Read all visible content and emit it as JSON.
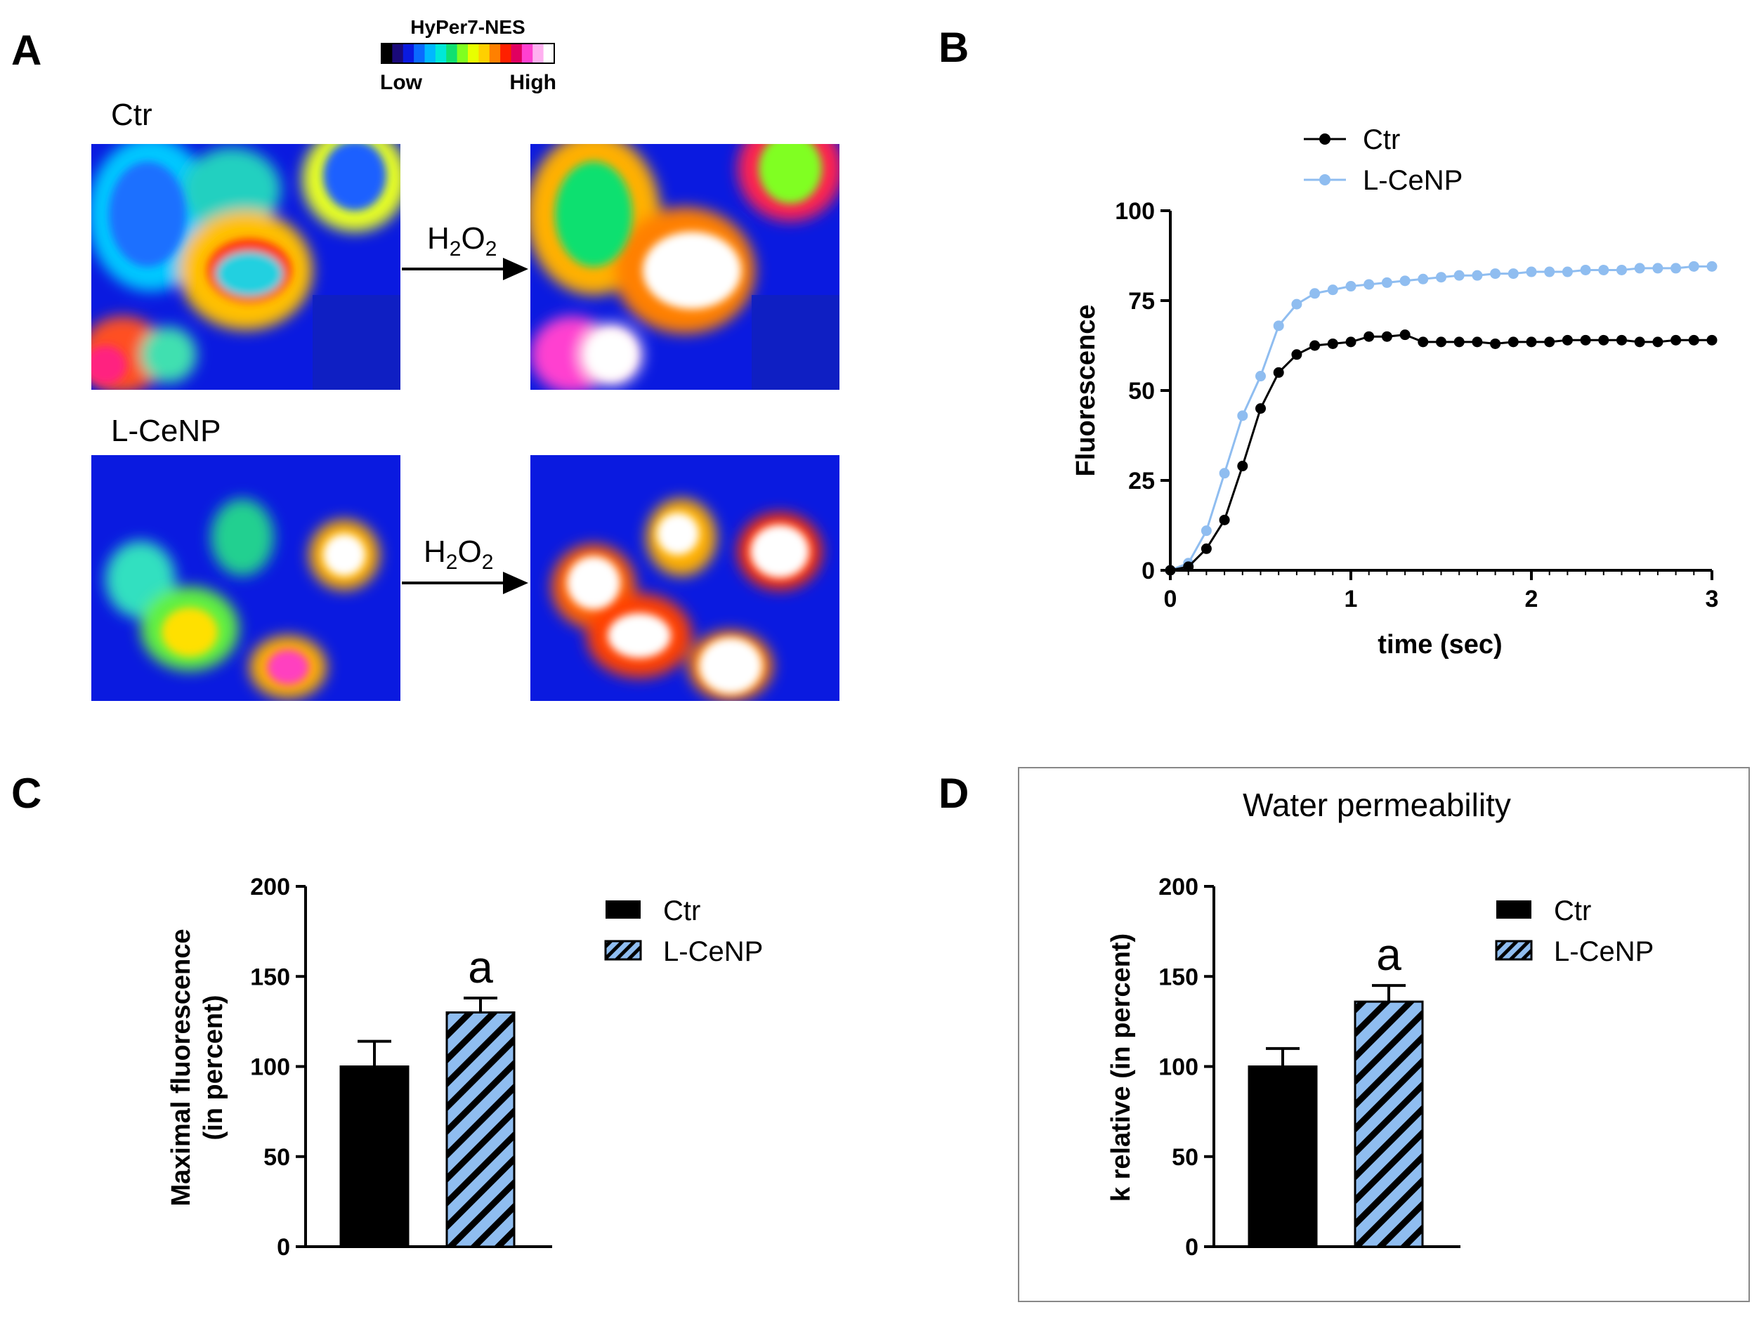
{
  "panel_labels": {
    "a": "A",
    "b": "B",
    "c": "C",
    "d": "D"
  },
  "panel_a": {
    "colorbar": {
      "title": "HyPer7-NES",
      "low_label": "Low",
      "high_label": "High",
      "colors": [
        "#000000",
        "#1a0a7a",
        "#0a1ae0",
        "#0a6aff",
        "#00b8ff",
        "#00e8d8",
        "#10e070",
        "#80ff20",
        "#e8ff00",
        "#ffd000",
        "#ff8000",
        "#ff2000",
        "#e00060",
        "#ff40d0",
        "#ffb0f0",
        "#ffffff"
      ]
    },
    "conditions": [
      "Ctr",
      "L-CeNP"
    ],
    "arrow_label": {
      "main": "H",
      "sub1": "2",
      "mid": "O",
      "sub2": "2"
    }
  },
  "chart_data": [
    {
      "panel": "B",
      "type": "line",
      "xlabel": "time (sec)",
      "ylabel": "Fluorescence",
      "xlim": [
        0,
        3
      ],
      "ylim": [
        0,
        100
      ],
      "xticks": [
        0,
        1,
        2,
        3
      ],
      "yticks": [
        0,
        25,
        50,
        75,
        100
      ],
      "legend_position": "top-left",
      "series": [
        {
          "name": "Ctr",
          "color": "#000000",
          "x": [
            0,
            0.1,
            0.2,
            0.3,
            0.4,
            0.5,
            0.6,
            0.7,
            0.8,
            0.9,
            1.0,
            1.1,
            1.2,
            1.3,
            1.4,
            1.5,
            1.6,
            1.7,
            1.8,
            1.9,
            2.0,
            2.1,
            2.2,
            2.3,
            2.4,
            2.5,
            2.6,
            2.7,
            2.8,
            2.9,
            3.0
          ],
          "y": [
            0,
            1,
            6,
            14,
            29,
            45,
            55,
            60,
            62.5,
            63,
            63.5,
            65,
            65,
            65.5,
            63.5,
            63.5,
            63.5,
            63.5,
            63,
            63.5,
            63.5,
            63.5,
            64,
            64,
            64,
            64,
            63.5,
            63.5,
            64,
            64,
            64
          ]
        },
        {
          "name": "L-CeNP",
          "color": "#8fbdf0",
          "x": [
            0,
            0.1,
            0.2,
            0.3,
            0.4,
            0.5,
            0.6,
            0.7,
            0.8,
            0.9,
            1.0,
            1.1,
            1.2,
            1.3,
            1.4,
            1.5,
            1.6,
            1.7,
            1.8,
            1.9,
            2.0,
            2.1,
            2.2,
            2.3,
            2.4,
            2.5,
            2.6,
            2.7,
            2.8,
            2.9,
            3.0
          ],
          "y": [
            0,
            2,
            11,
            27,
            43,
            54,
            68,
            74,
            77,
            78,
            79,
            79.5,
            80,
            80.5,
            81,
            81.5,
            82,
            82,
            82.5,
            82.5,
            83,
            83,
            83,
            83.5,
            83.5,
            83.5,
            84,
            84,
            84,
            84.5,
            84.5
          ]
        }
      ]
    },
    {
      "panel": "C",
      "type": "bar",
      "title": "",
      "xlabel": "",
      "ylabel": "Maximal fluorescence (in percent)",
      "ylabel_lines": [
        "Maximal fluorescence",
        "(in percent)"
      ],
      "ylim": [
        0,
        200
      ],
      "yticks": [
        0,
        50,
        100,
        150,
        200
      ],
      "legend_position": "top-right",
      "categories": [
        "Ctr",
        "L-CeNP"
      ],
      "values": [
        100,
        130
      ],
      "errors": [
        14,
        8
      ],
      "annotations": [
        "",
        "a"
      ]
    },
    {
      "panel": "D",
      "type": "bar",
      "title": "Water permeability",
      "xlabel": "",
      "ylabel": "k relative (in percent)",
      "ylabel_lines": [
        "k relative (in percent)"
      ],
      "ylim": [
        0,
        200
      ],
      "yticks": [
        0,
        50,
        100,
        150,
        200
      ],
      "legend_position": "top-right",
      "categories": [
        "Ctr",
        "L-CeNP"
      ],
      "values": [
        100,
        136
      ],
      "errors": [
        10,
        9
      ],
      "annotations": [
        "",
        "a"
      ]
    }
  ]
}
